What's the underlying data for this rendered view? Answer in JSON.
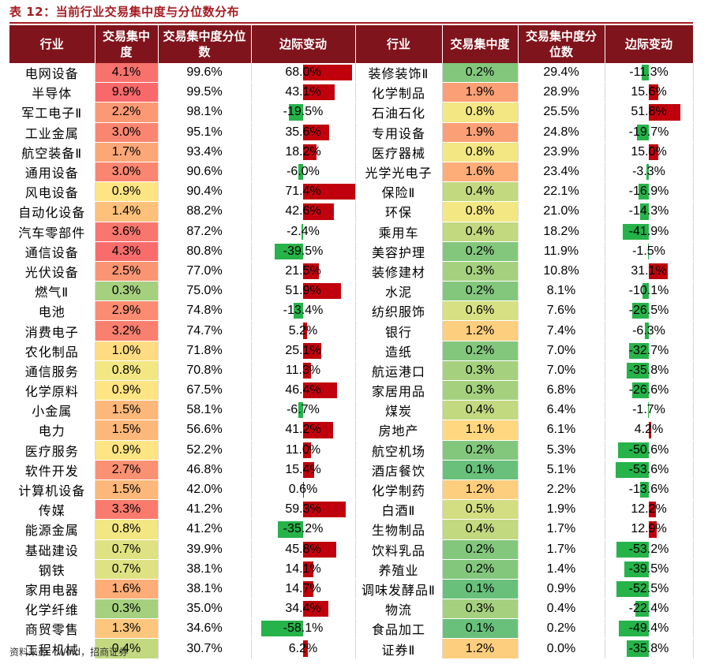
{
  "title": "表 12：当前行业交易集中度与分位数分布",
  "source": "资料来源：Wind，招商证券",
  "headers": [
    "行业",
    "交易集中度",
    "交易集中度分位数",
    "边际变动",
    "行业",
    "交易集中度",
    "交易集中度分位数",
    "边际变动"
  ],
  "colors": {
    "header_bg": "#80141c",
    "title": "#a61c22",
    "bar_pos": "#c0000c",
    "bar_neg": "#26b34a"
  },
  "rows_left": [
    {
      "industry": "电网设备",
      "conc": "4.1%",
      "pct": "99.6%",
      "chg": "68.0%"
    },
    {
      "industry": "半导体",
      "conc": "9.9%",
      "pct": "99.5%",
      "chg": "43.1%"
    },
    {
      "industry": "军工电子Ⅱ",
      "conc": "2.2%",
      "pct": "98.1%",
      "chg": "-19.5%"
    },
    {
      "industry": "工业金属",
      "conc": "3.0%",
      "pct": "95.1%",
      "chg": "35.6%"
    },
    {
      "industry": "航空装备Ⅱ",
      "conc": "1.7%",
      "pct": "93.4%",
      "chg": "18.2%"
    },
    {
      "industry": "通用设备",
      "conc": "3.0%",
      "pct": "90.6%",
      "chg": "-6.0%"
    },
    {
      "industry": "风电设备",
      "conc": "0.9%",
      "pct": "90.4%",
      "chg": "71.4%"
    },
    {
      "industry": "自动化设备",
      "conc": "1.4%",
      "pct": "88.2%",
      "chg": "42.6%"
    },
    {
      "industry": "汽车零部件",
      "conc": "3.6%",
      "pct": "87.2%",
      "chg": "-2.4%"
    },
    {
      "industry": "通信设备",
      "conc": "4.3%",
      "pct": "80.8%",
      "chg": "-39.5%"
    },
    {
      "industry": "光伏设备",
      "conc": "2.5%",
      "pct": "77.0%",
      "chg": "21.5%"
    },
    {
      "industry": "燃气Ⅱ",
      "conc": "0.3%",
      "pct": "75.0%",
      "chg": "51.9%"
    },
    {
      "industry": "电池",
      "conc": "2.9%",
      "pct": "74.8%",
      "chg": "-13.4%"
    },
    {
      "industry": "消费电子",
      "conc": "3.2%",
      "pct": "74.7%",
      "chg": "5.2%"
    },
    {
      "industry": "农化制品",
      "conc": "1.0%",
      "pct": "71.8%",
      "chg": "25.1%"
    },
    {
      "industry": "通信服务",
      "conc": "0.8%",
      "pct": "70.8%",
      "chg": "11.3%"
    },
    {
      "industry": "化学原料",
      "conc": "0.9%",
      "pct": "67.5%",
      "chg": "46.4%"
    },
    {
      "industry": "小金属",
      "conc": "1.5%",
      "pct": "58.1%",
      "chg": "-6.7%"
    },
    {
      "industry": "电力",
      "conc": "1.5%",
      "pct": "56.6%",
      "chg": "41.2%"
    },
    {
      "industry": "医疗服务",
      "conc": "0.9%",
      "pct": "52.2%",
      "chg": "11.0%"
    },
    {
      "industry": "软件开发",
      "conc": "2.7%",
      "pct": "46.8%",
      "chg": "15.4%"
    },
    {
      "industry": "计算机设备",
      "conc": "1.5%",
      "pct": "42.0%",
      "chg": "0.6%"
    },
    {
      "industry": "传媒",
      "conc": "3.3%",
      "pct": "41.2%",
      "chg": "59.3%"
    },
    {
      "industry": "能源金属",
      "conc": "0.8%",
      "pct": "41.2%",
      "chg": "-35.2%"
    },
    {
      "industry": "基础建设",
      "conc": "0.7%",
      "pct": "39.9%",
      "chg": "45.8%"
    },
    {
      "industry": "钢铁",
      "conc": "0.7%",
      "pct": "38.1%",
      "chg": "14.1%"
    },
    {
      "industry": "家用电器",
      "conc": "1.6%",
      "pct": "38.1%",
      "chg": "14.7%"
    },
    {
      "industry": "化学纤维",
      "conc": "0.3%",
      "pct": "35.0%",
      "chg": "34.4%"
    },
    {
      "industry": "商贸零售",
      "conc": "1.3%",
      "pct": "34.6%",
      "chg": "-58.1%"
    },
    {
      "industry": "工程机械",
      "conc": "0.4%",
      "pct": "30.7%",
      "chg": "6.2%"
    }
  ],
  "rows_right": [
    {
      "industry": "装修装饰Ⅱ",
      "conc": "0.2%",
      "pct": "29.4%",
      "chg": "-11.3%"
    },
    {
      "industry": "化学制品",
      "conc": "1.9%",
      "pct": "28.9%",
      "chg": "15.6%"
    },
    {
      "industry": "石油石化",
      "conc": "0.8%",
      "pct": "25.5%",
      "chg": "51.8%"
    },
    {
      "industry": "专用设备",
      "conc": "1.9%",
      "pct": "24.8%",
      "chg": "-19.7%"
    },
    {
      "industry": "医疗器械",
      "conc": "0.8%",
      "pct": "23.9%",
      "chg": "15.0%"
    },
    {
      "industry": "光学光电子",
      "conc": "1.6%",
      "pct": "23.4%",
      "chg": "-3.3%"
    },
    {
      "industry": "保险Ⅱ",
      "conc": "0.4%",
      "pct": "22.1%",
      "chg": "-16.9%"
    },
    {
      "industry": "环保",
      "conc": "0.8%",
      "pct": "21.0%",
      "chg": "-14.3%"
    },
    {
      "industry": "乘用车",
      "conc": "0.4%",
      "pct": "18.2%",
      "chg": "-41.9%"
    },
    {
      "industry": "美容护理",
      "conc": "0.2%",
      "pct": "11.9%",
      "chg": "-1.5%"
    },
    {
      "industry": "装修建材",
      "conc": "0.3%",
      "pct": "10.8%",
      "chg": "31.1%"
    },
    {
      "industry": "水泥",
      "conc": "0.2%",
      "pct": "8.1%",
      "chg": "-10.1%"
    },
    {
      "industry": "纺织服饰",
      "conc": "0.6%",
      "pct": "7.6%",
      "chg": "-26.5%"
    },
    {
      "industry": "银行",
      "conc": "1.2%",
      "pct": "7.4%",
      "chg": "-6.3%"
    },
    {
      "industry": "造纸",
      "conc": "0.2%",
      "pct": "7.0%",
      "chg": "-32.7%"
    },
    {
      "industry": "航运港口",
      "conc": "0.3%",
      "pct": "7.0%",
      "chg": "-35.8%"
    },
    {
      "industry": "家居用品",
      "conc": "0.3%",
      "pct": "6.8%",
      "chg": "-26.6%"
    },
    {
      "industry": "煤炭",
      "conc": "0.4%",
      "pct": "6.4%",
      "chg": "-1.7%"
    },
    {
      "industry": "房地产",
      "conc": "1.1%",
      "pct": "6.1%",
      "chg": "4.2%"
    },
    {
      "industry": "航空机场",
      "conc": "0.2%",
      "pct": "5.3%",
      "chg": "-50.6%"
    },
    {
      "industry": "酒店餐饮",
      "conc": "0.1%",
      "pct": "5.1%",
      "chg": "-53.6%"
    },
    {
      "industry": "化学制药",
      "conc": "1.2%",
      "pct": "2.2%",
      "chg": "-13.6%"
    },
    {
      "industry": "白酒Ⅱ",
      "conc": "0.5%",
      "pct": "1.9%",
      "chg": "12.2%"
    },
    {
      "industry": "生物制品",
      "conc": "0.4%",
      "pct": "1.7%",
      "chg": "12.9%"
    },
    {
      "industry": "饮料乳品",
      "conc": "0.2%",
      "pct": "1.7%",
      "chg": "-53.2%"
    },
    {
      "industry": "养殖业",
      "conc": "0.2%",
      "pct": "1.4%",
      "chg": "-39.5%"
    },
    {
      "industry": "调味发酵品Ⅱ",
      "conc": "0.1%",
      "pct": "0.9%",
      "chg": "-52.5%"
    },
    {
      "industry": "物流",
      "conc": "0.3%",
      "pct": "0.4%",
      "chg": "-22.4%"
    },
    {
      "industry": "食品加工",
      "conc": "0.1%",
      "pct": "0.2%",
      "chg": "-49.4%"
    },
    {
      "industry": "证券Ⅱ",
      "conc": "1.2%",
      "pct": "0.0%",
      "chg": "-35.8%"
    }
  ]
}
